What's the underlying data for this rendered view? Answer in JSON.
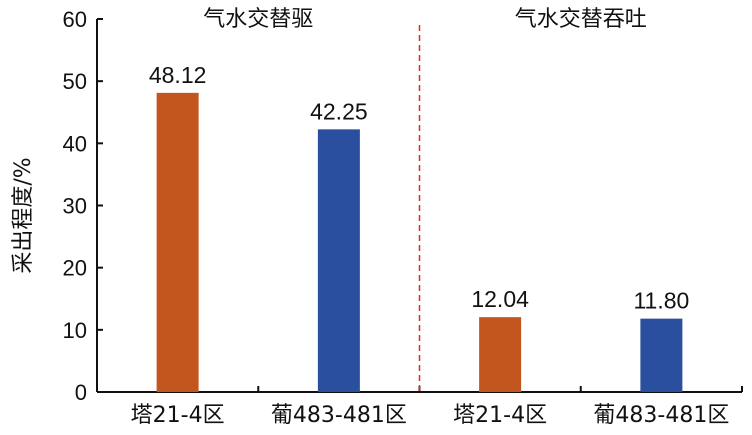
{
  "chart_data": {
    "type": "bar",
    "categories": [
      "塔21-4区",
      "葡483-481区",
      "塔21-4区",
      "葡483-481区"
    ],
    "values": [
      48.12,
      42.25,
      12.04,
      11.8
    ],
    "data_labels": [
      "48.12",
      "42.25",
      "12.04",
      "11.80"
    ],
    "bar_colors": [
      "#c3561f",
      "#2a4f9e",
      "#c3561f",
      "#2a4f9e"
    ],
    "groups": [
      {
        "label": "气水交替驱",
        "categories": [
          0,
          1
        ]
      },
      {
        "label": "气水交替吞吐",
        "categories": [
          2,
          3
        ]
      }
    ],
    "divider_color": "#d92b2b",
    "ylabel": "采出程度/%",
    "xlabel": "",
    "ylim": [
      0,
      60
    ],
    "yticks": [
      0,
      10,
      20,
      30,
      40,
      50,
      60
    ],
    "grid": false,
    "legend": "none"
  }
}
